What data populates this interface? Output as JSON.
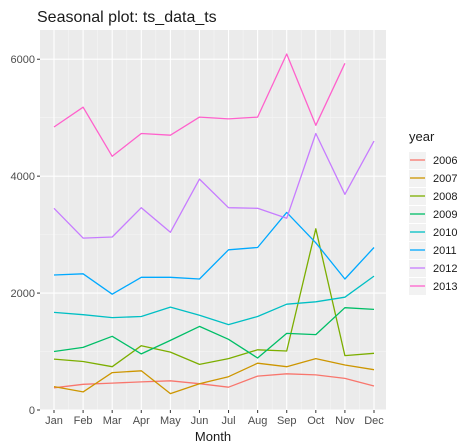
{
  "chart_data": {
    "type": "line",
    "title": "Seasonal plot: ts_data_ts",
    "xlabel": "Month",
    "ylabel": "",
    "categories": [
      "Jan",
      "Feb",
      "Mar",
      "Apr",
      "May",
      "Jun",
      "Jul",
      "Aug",
      "Sep",
      "Oct",
      "Nov",
      "Dec"
    ],
    "ylim": [
      0,
      6500
    ],
    "yticks": [
      0,
      2000,
      4000,
      6000
    ],
    "grid": true,
    "legend_title": "year",
    "legend_position": "right",
    "series": [
      {
        "name": "2006",
        "color": "#F8766D",
        "values": [
          380,
          440,
          460,
          480,
          500,
          450,
          390,
          580,
          620,
          600,
          540,
          410
        ]
      },
      {
        "name": "2007",
        "color": "#CD9600",
        "values": [
          400,
          310,
          640,
          670,
          280,
          450,
          570,
          800,
          740,
          880,
          770,
          690
        ]
      },
      {
        "name": "2008",
        "color": "#7CAE00",
        "values": [
          870,
          830,
          740,
          1100,
          990,
          780,
          880,
          1030,
          1010,
          3100,
          930,
          970
        ]
      },
      {
        "name": "2009",
        "color": "#00BE67",
        "values": [
          1000,
          1070,
          1260,
          960,
          1190,
          1430,
          1210,
          890,
          1310,
          1290,
          1750,
          1720
        ]
      },
      {
        "name": "2010",
        "color": "#00BFC4",
        "values": [
          1670,
          1630,
          1580,
          1600,
          1760,
          1620,
          1460,
          1600,
          1810,
          1850,
          1930,
          2290
        ]
      },
      {
        "name": "2011",
        "color": "#00A9FF",
        "values": [
          2310,
          2330,
          1980,
          2270,
          2270,
          2240,
          2740,
          2780,
          3380,
          2860,
          2240,
          2780
        ]
      },
      {
        "name": "2012",
        "color": "#C77CFF",
        "values": [
          3450,
          2940,
          2960,
          3460,
          3040,
          3950,
          3460,
          3450,
          3280,
          4730,
          3690,
          4600
        ]
      },
      {
        "name": "2013",
        "color": "#FF61CC",
        "values": [
          4840,
          5180,
          4340,
          4730,
          4700,
          5010,
          4980,
          5010,
          6090,
          4870,
          5930,
          null
        ]
      }
    ]
  }
}
